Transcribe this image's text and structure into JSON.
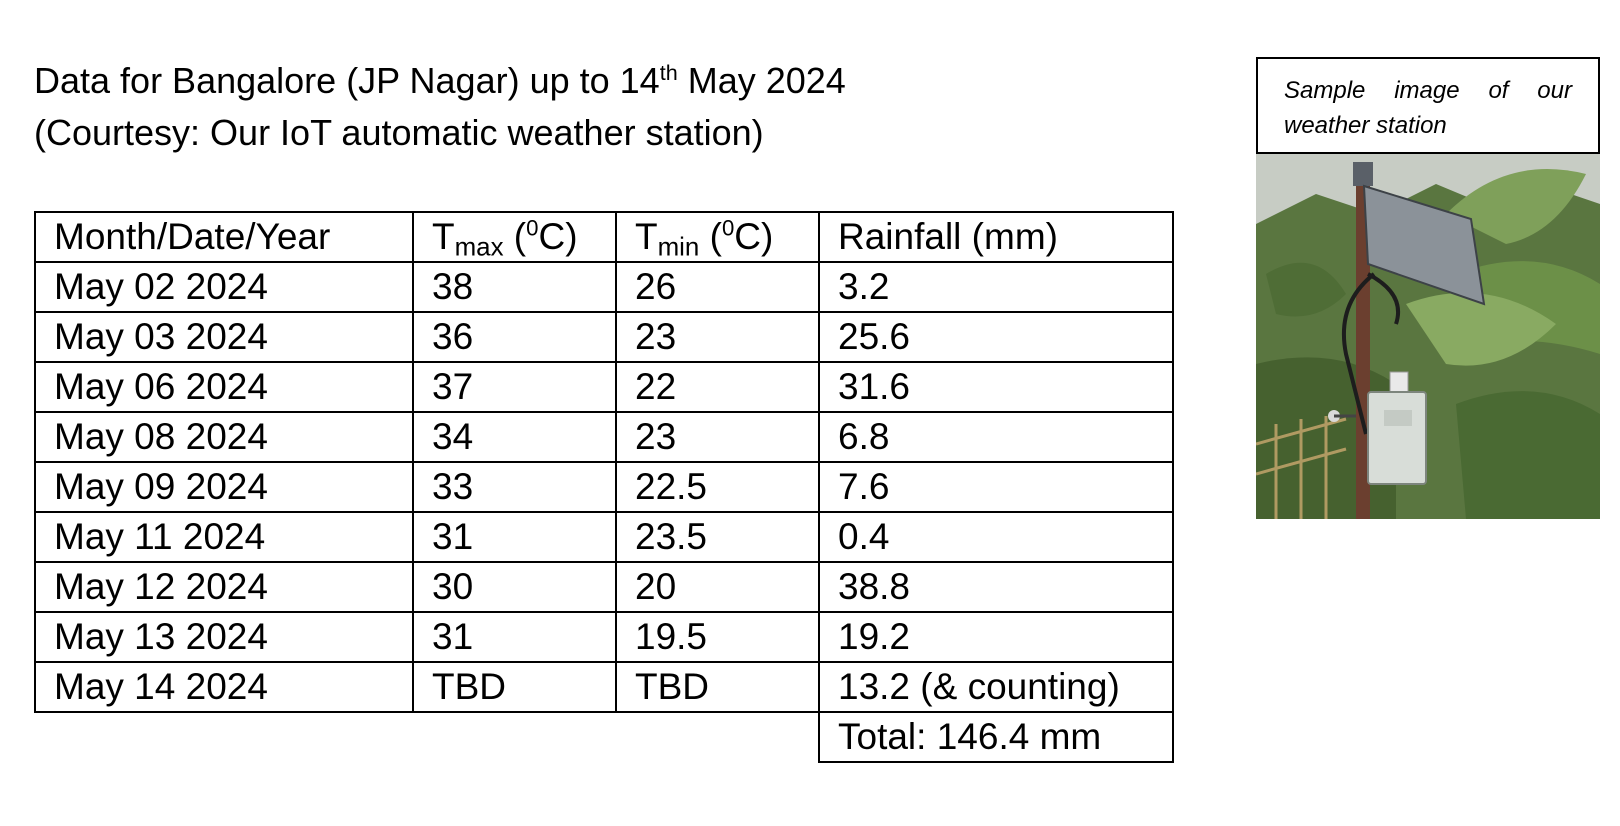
{
  "heading": {
    "line1_prefix": "Data for Bangalore (JP Nagar) up to 14",
    "line1_sup": "th",
    "line1_suffix": " May 2024",
    "line2": "(Courtesy: Our IoT automatic weather station)"
  },
  "table": {
    "headers": {
      "date": "Month/Date/Year",
      "tmax_t": "T",
      "tmax_sub": "max",
      "tmax_open": " (",
      "tmax_deg": "0",
      "tmax_unit": "C)",
      "tmin_t": "T",
      "tmin_sub": "min",
      "tmin_open": " (",
      "tmin_deg": "0",
      "tmin_unit": "C)",
      "rain": "Rainfall (mm)"
    },
    "rows": [
      {
        "date": "May 02 2024",
        "tmax": "38",
        "tmin": "26",
        "rain": "3.2"
      },
      {
        "date": "May 03 2024",
        "tmax": "36",
        "tmin": "23",
        "rain": "25.6"
      },
      {
        "date": "May 06 2024",
        "tmax": "37",
        "tmin": "22",
        "rain": "31.6"
      },
      {
        "date": "May 08 2024",
        "tmax": "34",
        "tmin": "23",
        "rain": "6.8"
      },
      {
        "date": "May 09 2024",
        "tmax": "33",
        "tmin": "22.5",
        "rain": "7.6"
      },
      {
        "date": "May 11 2024",
        "tmax": "31",
        "tmin": "23.5",
        "rain": "0.4"
      },
      {
        "date": "May 12 2024",
        "tmax": "30",
        "tmin": "20",
        "rain": "38.8"
      },
      {
        "date": "May 13 2024",
        "tmax": "31",
        "tmin": "19.5",
        "rain": "19.2"
      },
      {
        "date": "May 14 2024",
        "tmax": "TBD",
        "tmin": "TBD",
        "rain": "13.2 (& counting)"
      }
    ],
    "total": "Total: 146.4 mm"
  },
  "photo": {
    "caption": "Sample image of our weather station",
    "image_icon": "weather-station-photo"
  }
}
